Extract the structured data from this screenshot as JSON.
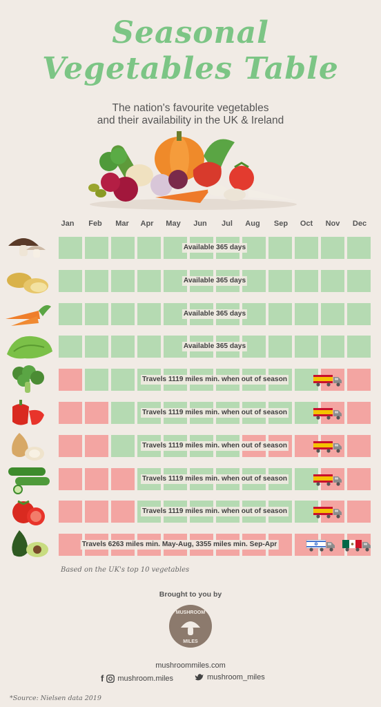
{
  "header": {
    "title_line1": "Seasonal",
    "title_line2": "Vegetables Table",
    "subtitle_line1": "The nation's favourite vegetables",
    "subtitle_line2": "and their availability in the UK & Ireland"
  },
  "chart_data": {
    "type": "heatmap",
    "months": [
      "Jan",
      "Feb",
      "Mar",
      "Apr",
      "May",
      "Jun",
      "Jul",
      "Aug",
      "Sep",
      "Oct",
      "Nov",
      "Dec"
    ],
    "legend_colors": {
      "in_season": "#b5dab2",
      "out_of_season": "#f3a5a2"
    },
    "rows": [
      {
        "icon": "mushroom-icon",
        "cells": [
          1,
          1,
          1,
          1,
          1,
          1,
          1,
          1,
          1,
          1,
          1,
          1
        ],
        "label": "Available 365 days",
        "trucks": []
      },
      {
        "icon": "potato-icon",
        "cells": [
          1,
          1,
          1,
          1,
          1,
          1,
          1,
          1,
          1,
          1,
          1,
          1
        ],
        "label": "Available 365 days",
        "trucks": []
      },
      {
        "icon": "carrot-icon",
        "cells": [
          1,
          1,
          1,
          1,
          1,
          1,
          1,
          1,
          1,
          1,
          1,
          1
        ],
        "label": "Available 365 days",
        "trucks": []
      },
      {
        "icon": "lettuce-icon",
        "cells": [
          1,
          1,
          1,
          1,
          1,
          1,
          1,
          1,
          1,
          1,
          1,
          1
        ],
        "label": "Available 365 days",
        "trucks": []
      },
      {
        "icon": "broccoli-icon",
        "cells": [
          0,
          1,
          1,
          1,
          1,
          1,
          1,
          1,
          1,
          1,
          0,
          0
        ],
        "label": "Travels 1119 miles min. when out of season",
        "trucks": [
          "spain-flag-truck-icon"
        ]
      },
      {
        "icon": "pepper-icon",
        "cells": [
          0,
          0,
          1,
          1,
          1,
          1,
          1,
          1,
          1,
          1,
          0,
          0
        ],
        "label": "Travels 1119 miles min. when out of season",
        "trucks": [
          "spain-flag-truck-icon"
        ]
      },
      {
        "icon": "onion-icon",
        "cells": [
          0,
          0,
          1,
          1,
          1,
          1,
          1,
          0,
          0,
          0,
          0,
          0
        ],
        "label": "Travels 1119 miles min. when out of season",
        "trucks": [
          "spain-flag-truck-icon"
        ]
      },
      {
        "icon": "cucumber-icon",
        "cells": [
          0,
          0,
          0,
          1,
          1,
          1,
          1,
          1,
          1,
          1,
          0,
          0
        ],
        "label": "Travels 1119 miles min. when out of season",
        "trucks": [
          "spain-flag-truck-icon"
        ]
      },
      {
        "icon": "tomato-icon",
        "cells": [
          0,
          0,
          0,
          1,
          1,
          1,
          1,
          1,
          1,
          1,
          0,
          0
        ],
        "label": "Travels 1119 miles min. when out of season",
        "trucks": [
          "spain-flag-truck-icon"
        ]
      },
      {
        "icon": "avocado-icon",
        "cells": [
          0,
          0,
          0,
          0,
          0,
          0,
          0,
          0,
          0,
          0,
          0,
          0
        ],
        "label": "Travels 6263 miles min. May-Aug, 3355 miles min. Sep-Apr",
        "trucks": [
          "israel-flag-truck-icon",
          "mexico-flag-truck-icon"
        ]
      }
    ]
  },
  "footer": {
    "footnote": "Based on the UK's top 10 vegetables",
    "brought": "Brought to you by",
    "logo_text_top": "MUSHROOM",
    "logo_text_bottom": "MILES",
    "site": "mushroommiles.com",
    "facebook_handle": "mushroom.miles",
    "twitter_handle": "mushroom_miles",
    "source": "*Source: Nielsen data 2019"
  }
}
